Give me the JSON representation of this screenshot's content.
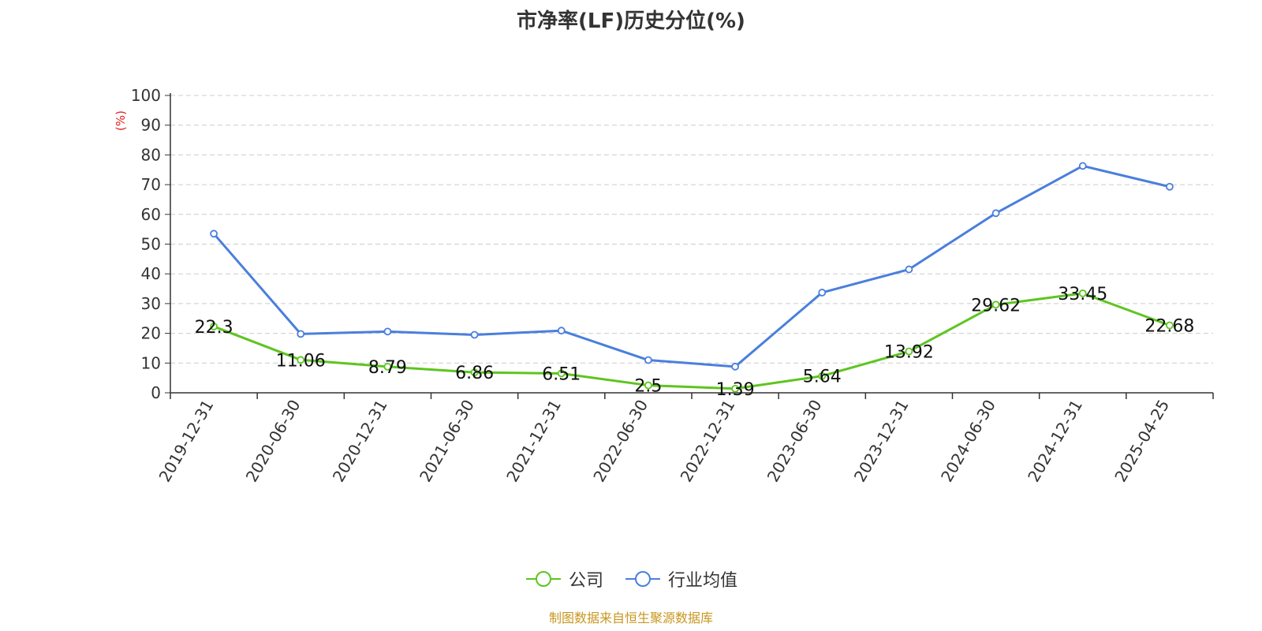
{
  "title": "市净率(LF)历史分位(%)",
  "source": "制图数据来自恒生聚源数据库",
  "colors": {
    "company": "#5dc51f",
    "industry": "#4a7fdc",
    "unit": "#e02020",
    "grid": "#cccccc",
    "axis": "#333333"
  },
  "chart_data": {
    "type": "line",
    "title": "市净率(LF)历史分位(%)",
    "xlabel": "",
    "ylabel": "(%)",
    "ylim": [
      0,
      100
    ],
    "yticks": [
      0,
      10,
      20,
      30,
      40,
      50,
      60,
      70,
      80,
      90,
      100
    ],
    "grid": true,
    "legend_position": "bottom",
    "categories": [
      "2019-12-31",
      "2020-06-30",
      "2020-12-31",
      "2021-06-30",
      "2021-12-31",
      "2022-06-30",
      "2022-12-31",
      "2023-06-30",
      "2023-12-31",
      "2024-06-30",
      "2024-12-31",
      "2025-04-25"
    ],
    "series": [
      {
        "name": "公司",
        "values": [
          22.3,
          11.06,
          8.79,
          6.86,
          6.51,
          2.5,
          1.39,
          5.64,
          13.92,
          29.62,
          33.45,
          22.68
        ],
        "labels": [
          "22.3",
          "11.06",
          "8.79",
          "6.86",
          "6.51",
          "2.5",
          "1.39",
          "5.64",
          "13.92",
          "29.62",
          "33.45",
          "22.68"
        ],
        "color": "#5dc51f"
      },
      {
        "name": "行业均值",
        "values": [
          53.5,
          19.8,
          20.6,
          19.5,
          20.9,
          11.0,
          8.8,
          33.7,
          41.5,
          60.4,
          76.3,
          69.3
        ],
        "color": "#4a7fdc"
      }
    ]
  },
  "legend": [
    {
      "label": "公司",
      "color": "#5dc51f"
    },
    {
      "label": "行业均值",
      "color": "#4a7fdc"
    }
  ]
}
